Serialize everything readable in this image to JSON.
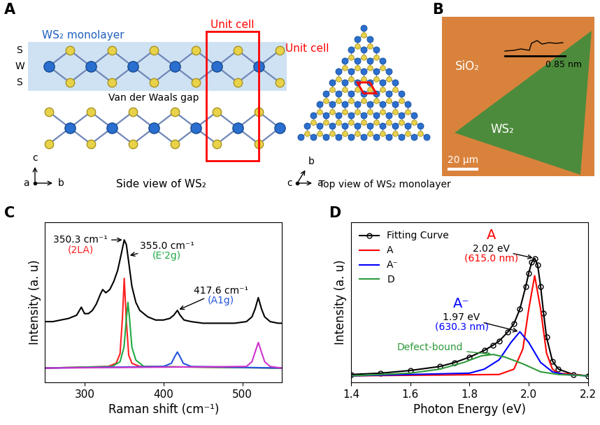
{
  "panels": {
    "A": {
      "panel": "A",
      "side_view": {
        "monolayer_label": "WS₂ monolayer",
        "unit_cell_label": "Unit cell",
        "atom_labels": [
          "S",
          "W",
          "S"
        ],
        "gap_label": "Van der Waals gap",
        "caption": "Side view of WS₂",
        "axes": {
          "up": "c",
          "dot": "a",
          "right": "b"
        }
      },
      "top_view": {
        "unit_cell_label": "Unit cell",
        "caption": "Top view of WS₂ monolayer",
        "axes": {
          "dot": "c",
          "diagonal": "b",
          "right": "a"
        }
      }
    },
    "B": {
      "panel": "B",
      "substrate_label": "SiO₂",
      "flake_label": "WS₂",
      "scale_bar": "20 μm",
      "step_height": "0.85 nm"
    }
  },
  "chart_data": [
    {
      "panel": "C",
      "type": "line",
      "x_label": "Raman shift (cm⁻¹)",
      "y_label": "Intensity (a. u)",
      "xlim": [
        250,
        550
      ],
      "xticks": [
        300,
        400,
        500
      ],
      "ylim": [
        0,
        1
      ],
      "tick_labels": "x",
      "series": [
        {
          "color": "#000000",
          "x": [
            250,
            260,
            270,
            280,
            290,
            296,
            300,
            305,
            310,
            315,
            320,
            323,
            327,
            332,
            337,
            342,
            346,
            350.3,
            353,
            356,
            360,
            365,
            370,
            380,
            390,
            400,
            408,
            413,
            417.6,
            421,
            426,
            435,
            450,
            470,
            490,
            505,
            512,
            516,
            520,
            524,
            528,
            535,
            545,
            550
          ],
          "values": [
            0.38,
            0.38,
            0.39,
            0.4,
            0.42,
            0.47,
            0.43,
            0.43,
            0.45,
            0.49,
            0.55,
            0.58,
            0.56,
            0.58,
            0.63,
            0.7,
            0.79,
            0.89,
            0.86,
            0.75,
            0.6,
            0.5,
            0.45,
            0.41,
            0.39,
            0.39,
            0.4,
            0.42,
            0.45,
            0.42,
            0.39,
            0.38,
            0.37,
            0.37,
            0.37,
            0.38,
            0.41,
            0.46,
            0.53,
            0.46,
            0.41,
            0.38,
            0.37,
            0.37
          ]
        },
        {
          "color": "#ff2020",
          "x": [
            250,
            330,
            340,
            345,
            348,
            350.3,
            353,
            356,
            360,
            370,
            550
          ],
          "values": [
            0.09,
            0.1,
            0.12,
            0.18,
            0.4,
            0.65,
            0.38,
            0.17,
            0.12,
            0.1,
            0.09
          ]
        },
        {
          "color": "#22aa44",
          "x": [
            250,
            335,
            345,
            350,
            353,
            355,
            357,
            360,
            365,
            375,
            550
          ],
          "values": [
            0.09,
            0.1,
            0.13,
            0.22,
            0.4,
            0.5,
            0.4,
            0.22,
            0.14,
            0.1,
            0.09
          ]
        },
        {
          "color": "#2255dd",
          "x": [
            250,
            400,
            410,
            414,
            417.6,
            421,
            425,
            435,
            550
          ],
          "values": [
            0.09,
            0.1,
            0.12,
            0.16,
            0.19,
            0.16,
            0.12,
            0.1,
            0.09
          ]
        },
        {
          "color": "#cc33cc",
          "x": [
            250,
            505,
            512,
            516,
            520,
            524,
            528,
            535,
            550
          ],
          "values": [
            0.09,
            0.1,
            0.13,
            0.19,
            0.25,
            0.19,
            0.13,
            0.1,
            0.09
          ]
        }
      ],
      "annotations": [
        {
          "x": 350.3,
          "y": 0.89,
          "lines": [
            {
              "text": "350.3 cm⁻¹",
              "color": "#000000"
            },
            {
              "text": "(2LA)",
              "color": "#ff2020"
            }
          ]
        },
        {
          "x": 355.0,
          "y": 0.79,
          "lines": [
            {
              "text": "355.0 cm⁻¹",
              "color": "#000000"
            },
            {
              "text": "(E'2g)",
              "color": "#22aa44"
            }
          ]
        },
        {
          "x": 417.6,
          "y": 0.45,
          "lines": [
            {
              "text": "417.6 cm⁻¹",
              "color": "#000000"
            },
            {
              "text": "(A1g)",
              "color": "#2255dd"
            }
          ]
        }
      ]
    },
    {
      "panel": "D",
      "type": "line",
      "x_label": "Photon Energy (eV)",
      "y_label": "Intensity (a. u)",
      "xlim": [
        1.4,
        2.2
      ],
      "xticks": [
        1.4,
        1.6,
        1.8,
        2.0,
        2.2
      ],
      "ylim": [
        0,
        1.2
      ],
      "tick_labels": "x",
      "legend": "upper left",
      "series": [
        {
          "name": "Fitting Curve",
          "color": "#000000",
          "marker": "o",
          "x": [
            1.4,
            1.5,
            1.6,
            1.7,
            1.75,
            1.8,
            1.85,
            1.88,
            1.9,
            1.93,
            1.95,
            1.97,
            1.99,
            2.0,
            2.01,
            2.02,
            2.03,
            2.04,
            2.05,
            2.06,
            2.08,
            2.1,
            2.15,
            2.2
          ],
          "values": [
            0.06,
            0.07,
            0.09,
            0.12,
            0.15,
            0.19,
            0.24,
            0.28,
            0.31,
            0.38,
            0.44,
            0.55,
            0.72,
            0.82,
            0.9,
            0.93,
            0.88,
            0.72,
            0.52,
            0.34,
            0.16,
            0.1,
            0.06,
            0.05
          ]
        },
        {
          "name": "A",
          "color": "#ff0000",
          "x": [
            1.4,
            1.9,
            1.95,
            1.98,
            2.0,
            2.02,
            2.04,
            2.06,
            2.08,
            2.1,
            2.2
          ],
          "values": [
            0.05,
            0.06,
            0.1,
            0.25,
            0.55,
            0.8,
            0.55,
            0.22,
            0.1,
            0.07,
            0.05
          ]
        },
        {
          "name": "A⁻",
          "color": "#0000ff",
          "x": [
            1.4,
            1.8,
            1.85,
            1.9,
            1.94,
            1.97,
            2.0,
            2.04,
            2.08,
            2.12,
            2.2
          ],
          "values": [
            0.05,
            0.07,
            0.1,
            0.17,
            0.3,
            0.38,
            0.3,
            0.15,
            0.08,
            0.06,
            0.05
          ]
        },
        {
          "name": "D",
          "color": "#2e9a3a",
          "x": [
            1.4,
            1.6,
            1.7,
            1.78,
            1.84,
            1.88,
            1.92,
            1.98,
            2.04,
            2.1,
            2.2
          ],
          "values": [
            0.05,
            0.07,
            0.1,
            0.15,
            0.2,
            0.21,
            0.19,
            0.14,
            0.08,
            0.06,
            0.05
          ]
        }
      ],
      "annotations": [
        {
          "name": "A",
          "color": "#ff0000",
          "x": 2.02,
          "y": 0.93,
          "lines": [
            {
              "text": "2.02 eV",
              "color": "#000000"
            },
            {
              "text": "(615.0 nm)",
              "color": "#ff0000"
            }
          ]
        },
        {
          "name": "A⁻",
          "color": "#0000ff",
          "x": 1.97,
          "y": 0.38,
          "lines": [
            {
              "text": "1.97 eV",
              "color": "#000000"
            },
            {
              "text": "(630.3 nm)",
              "color": "#0000ff"
            }
          ]
        },
        {
          "x": 1.88,
          "y": 0.21,
          "lines": [
            {
              "text": "Defect-bound",
              "color": "#2e9a3a"
            }
          ]
        }
      ]
    }
  ]
}
